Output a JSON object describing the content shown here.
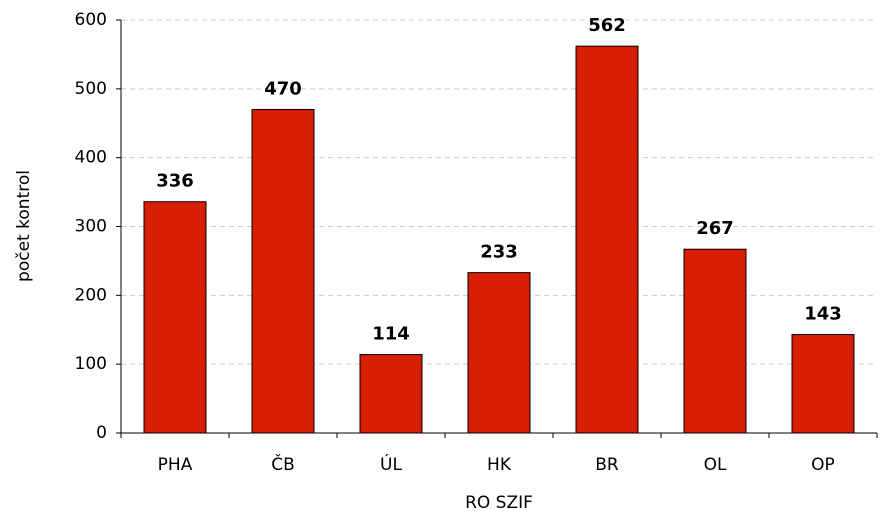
{
  "chart_data": {
    "type": "bar",
    "categories": [
      "PHA",
      "ČB",
      "ÚL",
      "HK",
      "BR",
      "OL",
      "OP"
    ],
    "values": [
      336,
      470,
      114,
      233,
      562,
      267,
      143
    ],
    "color": "#d81e05",
    "ylim": [
      0,
      600
    ],
    "yticks": [
      0,
      100,
      200,
      300,
      400,
      500,
      600
    ],
    "grid": true,
    "y_label": "počet kontrol",
    "x_label": "RO SZIF"
  }
}
